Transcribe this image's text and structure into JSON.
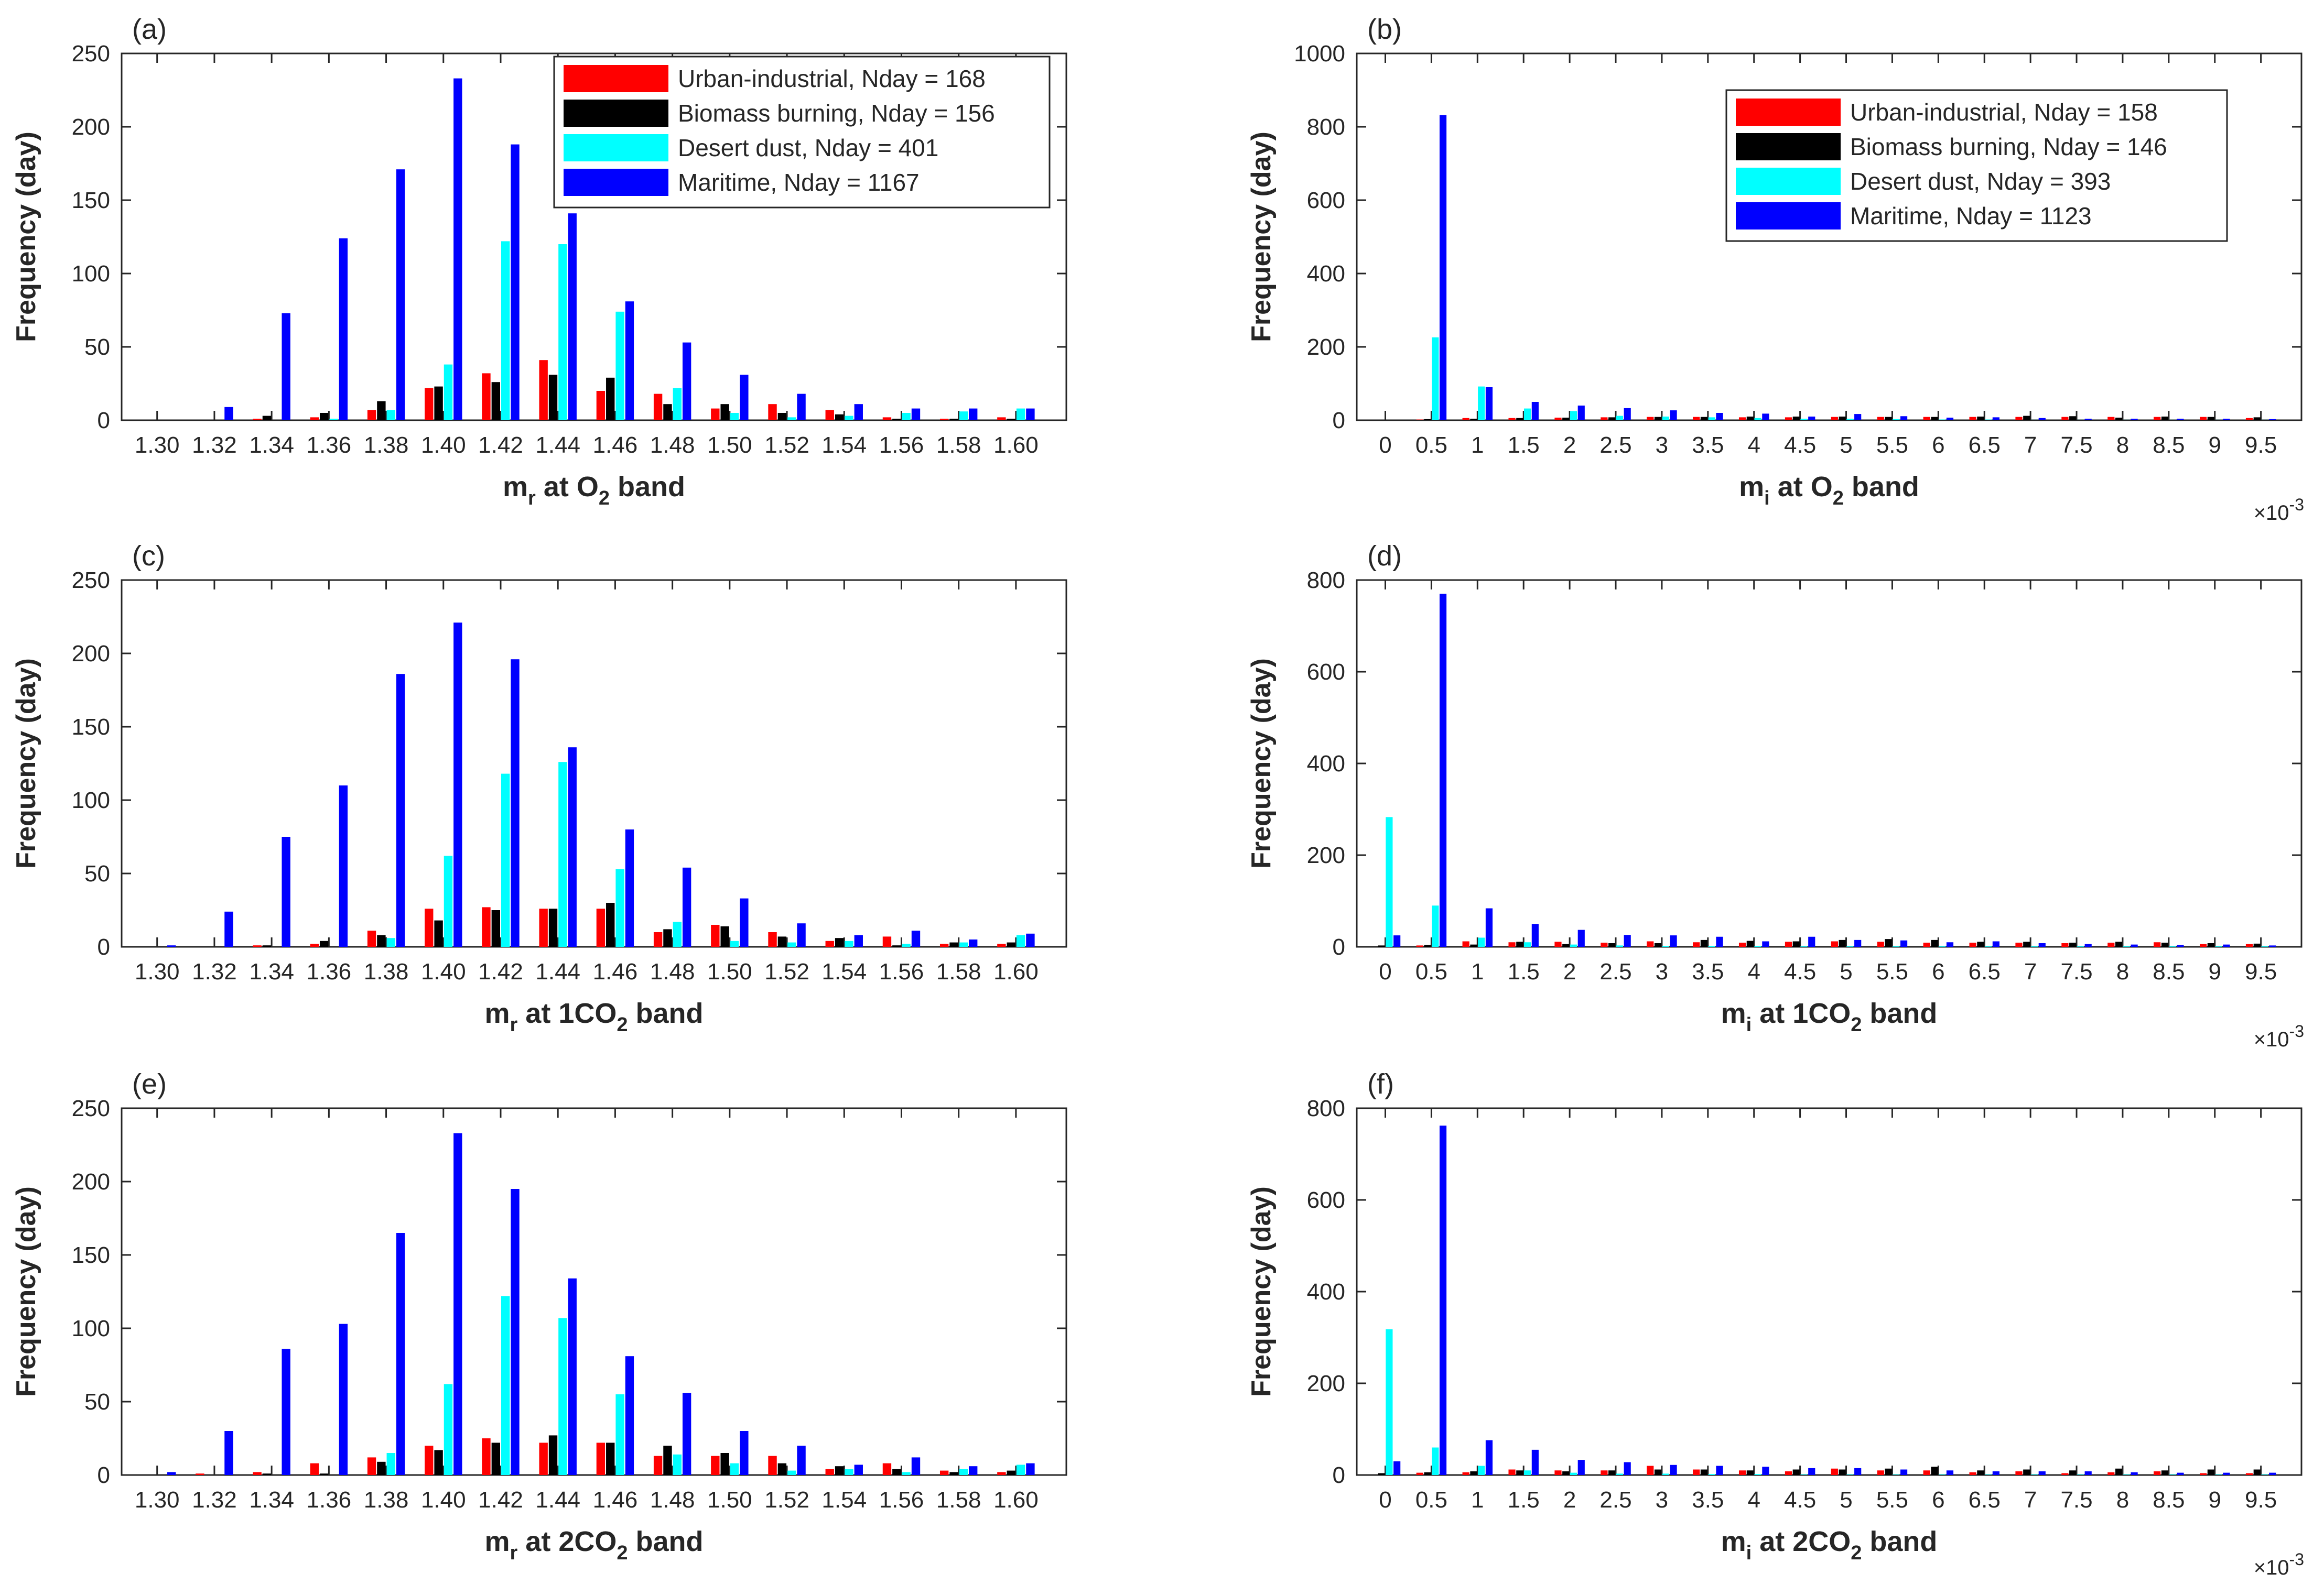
{
  "chart_data": [
    {
      "type": "bar",
      "panel_label": "(a)",
      "ylabel": "Frequency (day)",
      "xlabel_main": "m",
      "xlabel_sub": "r",
      "xlabel_mid": " at O",
      "xlabel_sub2": "2",
      "xlabel_end": " band",
      "xlabel_exponent": "",
      "ylim": [
        0,
        250
      ],
      "yticks": [
        "0",
        "50",
        "100",
        "150",
        "200",
        "250"
      ],
      "categories": [
        "1.30",
        "1.32",
        "1.34",
        "1.36",
        "1.38",
        "1.40",
        "1.42",
        "1.44",
        "1.46",
        "1.48",
        "1.50",
        "1.52",
        "1.54",
        "1.56",
        "1.58",
        "1.60"
      ],
      "legend": [
        "Urban-industrial, Nday = 168",
        "Biomass burning, Nday = 156",
        "Desert dust, Nday = 401",
        "Maritime, Nday = 1167"
      ],
      "series": [
        {
          "name": "Urban-industrial",
          "color": "#ff0000",
          "values": [
            0,
            0,
            1,
            2,
            7,
            22,
            32,
            41,
            20,
            18,
            8,
            11,
            7,
            2,
            1,
            2
          ]
        },
        {
          "name": "Biomass burning",
          "color": "#000000",
          "values": [
            0,
            0,
            3,
            5,
            13,
            23,
            26,
            31,
            29,
            11,
            11,
            5,
            4,
            1,
            1,
            1
          ]
        },
        {
          "name": "Desert dust",
          "color": "#00ffff",
          "values": [
            0,
            0,
            0,
            1,
            7,
            38,
            122,
            120,
            74,
            22,
            5,
            2,
            3,
            5,
            6,
            8
          ]
        },
        {
          "name": "Maritime",
          "color": "#0000ff",
          "values": [
            0,
            9,
            73,
            124,
            171,
            233,
            188,
            141,
            81,
            53,
            31,
            18,
            11,
            8,
            8,
            8
          ]
        }
      ]
    },
    {
      "type": "bar",
      "panel_label": "(b)",
      "ylabel": "Frequency (day)",
      "xlabel_main": "m",
      "xlabel_sub": "i",
      "xlabel_mid": " at O",
      "xlabel_sub2": "2",
      "xlabel_end": " band",
      "xlabel_exponent": "×10",
      "xlabel_exponent_power": "-3",
      "ylim": [
        0,
        1000
      ],
      "yticks": [
        "0",
        "200",
        "400",
        "600",
        "800",
        "1000"
      ],
      "categories": [
        "0",
        "0.5",
        "1",
        "1.5",
        "2",
        "2.5",
        "3",
        "3.5",
        "4",
        "4.5",
        "5",
        "5.5",
        "6",
        "6.5",
        "7",
        "7.5",
        "8",
        "8.5",
        "9",
        "9.5"
      ],
      "legend": [
        "Urban-industrial, Nday = 158",
        "Biomass burning, Nday = 146",
        "Desert dust, Nday = 393",
        "Maritime, Nday = 1123"
      ],
      "series": [
        {
          "name": "Urban-industrial",
          "color": "#ff0000",
          "values": [
            0,
            2,
            6,
            6,
            7,
            8,
            9,
            9,
            8,
            8,
            9,
            9,
            9,
            9,
            9,
            9,
            9,
            9,
            9,
            6
          ]
        },
        {
          "name": "Biomass burning",
          "color": "#000000",
          "values": [
            0,
            3,
            4,
            6,
            7,
            8,
            9,
            9,
            10,
            10,
            10,
            9,
            9,
            10,
            12,
            11,
            7,
            10,
            9,
            8
          ]
        },
        {
          "name": "Desert dust",
          "color": "#00ffff",
          "values": [
            0,
            226,
            92,
            32,
            25,
            12,
            10,
            8,
            6,
            4,
            4,
            3,
            2,
            2,
            1,
            1,
            1,
            1,
            1,
            1
          ]
        },
        {
          "name": "Maritime",
          "color": "#0000ff",
          "values": [
            0,
            832,
            90,
            50,
            40,
            33,
            27,
            20,
            18,
            10,
            17,
            11,
            7,
            8,
            6,
            4,
            4,
            4,
            4,
            3
          ]
        }
      ]
    },
    {
      "type": "bar",
      "panel_label": "(c)",
      "ylabel": "Frequency (day)",
      "xlabel_main": "m",
      "xlabel_sub": "r",
      "xlabel_mid": " at 1CO",
      "xlabel_sub2": "2",
      "xlabel_end": " band",
      "xlabel_exponent": "",
      "ylim": [
        0,
        250
      ],
      "yticks": [
        "0",
        "50",
        "100",
        "150",
        "200",
        "250"
      ],
      "categories": [
        "1.30",
        "1.32",
        "1.34",
        "1.36",
        "1.38",
        "1.40",
        "1.42",
        "1.44",
        "1.46",
        "1.48",
        "1.50",
        "1.52",
        "1.54",
        "1.56",
        "1.58",
        "1.60"
      ],
      "legend": [],
      "series": [
        {
          "name": "Urban-industrial",
          "color": "#ff0000",
          "values": [
            0,
            0,
            1,
            2,
            11,
            26,
            27,
            26,
            26,
            10,
            15,
            10,
            4,
            7,
            2,
            2
          ]
        },
        {
          "name": "Biomass burning",
          "color": "#000000",
          "values": [
            0,
            0,
            1,
            4,
            8,
            18,
            25,
            26,
            30,
            12,
            14,
            7,
            6,
            1,
            3,
            3
          ]
        },
        {
          "name": "Desert dust",
          "color": "#00ffff",
          "values": [
            0,
            0,
            0,
            0,
            6,
            62,
            118,
            126,
            53,
            17,
            4,
            3,
            4,
            2,
            3,
            8
          ]
        },
        {
          "name": "Maritime",
          "color": "#0000ff",
          "values": [
            1,
            24,
            75,
            110,
            186,
            221,
            196,
            136,
            80,
            54,
            33,
            16,
            8,
            11,
            5,
            9
          ]
        }
      ]
    },
    {
      "type": "bar",
      "panel_label": "(d)",
      "ylabel": "Frequency (day)",
      "xlabel_main": "m",
      "xlabel_sub": "i",
      "xlabel_mid": " at 1CO",
      "xlabel_sub2": "2",
      "xlabel_end": " band",
      "xlabel_exponent": "×10",
      "xlabel_exponent_power": "-3",
      "ylim": [
        0,
        800
      ],
      "yticks": [
        "0",
        "200",
        "400",
        "600",
        "800"
      ],
      "categories": [
        "0",
        "0.5",
        "1",
        "1.5",
        "2",
        "2.5",
        "3",
        "3.5",
        "4",
        "4.5",
        "5",
        "5.5",
        "6",
        "6.5",
        "7",
        "7.5",
        "8",
        "8.5",
        "9",
        "9.5"
      ],
      "legend": [],
      "series": [
        {
          "name": "Urban-industrial",
          "color": "#ff0000",
          "values": [
            0,
            3,
            12,
            10,
            11,
            9,
            12,
            10,
            9,
            11,
            12,
            11,
            9,
            9,
            9,
            8,
            9,
            10,
            6,
            6
          ]
        },
        {
          "name": "Biomass burning",
          "color": "#000000",
          "values": [
            3,
            4,
            5,
            11,
            6,
            8,
            8,
            15,
            13,
            12,
            15,
            17,
            15,
            11,
            11,
            9,
            11,
            9,
            8,
            7
          ]
        },
        {
          "name": "Desert dust",
          "color": "#00ffff",
          "values": [
            283,
            90,
            20,
            10,
            5,
            3,
            2,
            2,
            2,
            1,
            1,
            1,
            1,
            1,
            1,
            1,
            1,
            1,
            1,
            1
          ]
        },
        {
          "name": "Maritime",
          "color": "#0000ff",
          "values": [
            25,
            770,
            84,
            50,
            37,
            26,
            25,
            22,
            12,
            22,
            15,
            14,
            10,
            12,
            8,
            6,
            5,
            4,
            5,
            3
          ]
        }
      ]
    },
    {
      "type": "bar",
      "panel_label": "(e)",
      "ylabel": "Frequency (day)",
      "xlabel_main": "m",
      "xlabel_sub": "r",
      "xlabel_mid": " at 2CO",
      "xlabel_sub2": "2",
      "xlabel_end": " band",
      "xlabel_exponent": "",
      "ylim": [
        0,
        250
      ],
      "yticks": [
        "0",
        "50",
        "100",
        "150",
        "200",
        "250"
      ],
      "categories": [
        "1.30",
        "1.32",
        "1.34",
        "1.36",
        "1.38",
        "1.40",
        "1.42",
        "1.44",
        "1.46",
        "1.48",
        "1.50",
        "1.52",
        "1.54",
        "1.56",
        "1.58",
        "1.60"
      ],
      "legend": [],
      "series": [
        {
          "name": "Urban-industrial",
          "color": "#ff0000",
          "values": [
            0,
            1,
            2,
            8,
            12,
            20,
            25,
            22,
            22,
            13,
            13,
            13,
            4,
            8,
            3,
            2
          ]
        },
        {
          "name": "Biomass burning",
          "color": "#000000",
          "values": [
            0,
            0,
            1,
            1,
            9,
            17,
            22,
            27,
            22,
            20,
            15,
            8,
            6,
            4,
            2,
            3
          ]
        },
        {
          "name": "Desert dust",
          "color": "#00ffff",
          "values": [
            0,
            0,
            0,
            0,
            15,
            62,
            122,
            107,
            55,
            14,
            8,
            3,
            4,
            2,
            4,
            7
          ]
        },
        {
          "name": "Maritime",
          "color": "#0000ff",
          "values": [
            2,
            30,
            86,
            103,
            165,
            233,
            195,
            134,
            81,
            56,
            30,
            20,
            7,
            12,
            6,
            8
          ]
        }
      ]
    },
    {
      "type": "bar",
      "panel_label": "(f)",
      "ylabel": "Frequency (day)",
      "xlabel_main": "m",
      "xlabel_sub": "i",
      "xlabel_mid": " at 2CO",
      "xlabel_sub2": "2",
      "xlabel_end": " band",
      "xlabel_exponent": "×10",
      "xlabel_exponent_power": "-3",
      "ylim": [
        0,
        800
      ],
      "yticks": [
        "0",
        "200",
        "400",
        "600",
        "800"
      ],
      "categories": [
        "0",
        "0.5",
        "1",
        "1.5",
        "2",
        "2.5",
        "3",
        "3.5",
        "4",
        "4.5",
        "5",
        "5.5",
        "6",
        "6.5",
        "7",
        "7.5",
        "8",
        "8.5",
        "9",
        "9.5"
      ],
      "legend": [],
      "series": [
        {
          "name": "Urban-industrial",
          "color": "#ff0000",
          "values": [
            0,
            5,
            6,
            12,
            10,
            10,
            20,
            12,
            10,
            8,
            14,
            10,
            10,
            6,
            8,
            4,
            6,
            8,
            4,
            4
          ]
        },
        {
          "name": "Biomass burning",
          "color": "#000000",
          "values": [
            4,
            6,
            8,
            10,
            8,
            10,
            12,
            12,
            10,
            12,
            12,
            14,
            18,
            10,
            12,
            10,
            14,
            10,
            12,
            12
          ]
        },
        {
          "name": "Desert dust",
          "color": "#00ffff",
          "values": [
            318,
            60,
            20,
            10,
            5,
            3,
            3,
            2,
            2,
            1,
            1,
            1,
            1,
            1,
            1,
            1,
            1,
            1,
            1,
            1
          ]
        },
        {
          "name": "Maritime",
          "color": "#0000ff",
          "values": [
            30,
            762,
            76,
            55,
            33,
            28,
            22,
            20,
            18,
            15,
            15,
            12,
            10,
            8,
            8,
            8,
            6,
            5,
            5,
            5
          ]
        }
      ]
    }
  ]
}
